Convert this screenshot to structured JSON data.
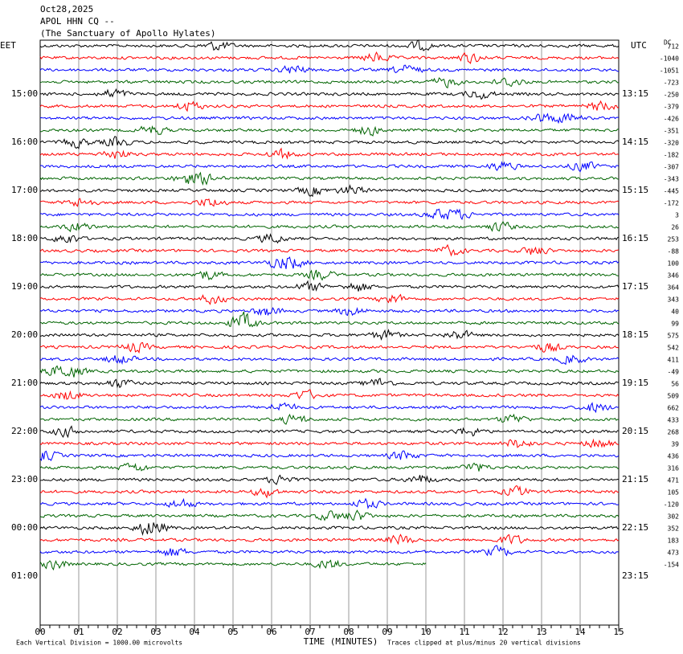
{
  "header": {
    "date": "Oct28,2025",
    "station": "APOL HHN CQ --",
    "site": "(The Sanctuary of Apollo Hylates)"
  },
  "left_axis": {
    "title": "EET",
    "labels": [
      "15:00",
      "16:00",
      "17:00",
      "18:00",
      "19:00",
      "20:00",
      "21:00",
      "22:00",
      "23:00",
      "00:00",
      "01:00"
    ]
  },
  "right_axis": {
    "title": "UTC",
    "labels": [
      "13:15",
      "14:15",
      "15:15",
      "16:15",
      "17:15",
      "18:15",
      "19:15",
      "20:15",
      "21:15",
      "22:15",
      "23:15"
    ]
  },
  "dc": {
    "title": "DC",
    "values": [
      "712",
      "-1040",
      "-1051",
      "-723",
      "-250",
      "-379",
      "-426",
      "-351",
      "-320",
      "-182",
      "-307",
      "-343",
      "-445",
      "-172",
      "3",
      "26",
      "253",
      "-88",
      "100",
      "346",
      "364",
      "343",
      "40",
      "99",
      "575",
      "542",
      "411",
      "-49",
      "56",
      "509",
      "662",
      "433",
      "268",
      "39",
      "436",
      "316",
      "471",
      "105",
      "-120",
      "302",
      "352",
      "183",
      "473",
      "-154"
    ]
  },
  "x_axis": {
    "title": "TIME (MINUTES)",
    "labels": [
      "00",
      "01",
      "02",
      "03",
      "04",
      "05",
      "06",
      "07",
      "08",
      "09",
      "10",
      "11",
      "12",
      "13",
      "14",
      "15"
    ]
  },
  "footer": {
    "scale": "Each Vertical Division = 1000.00 microvolts",
    "clip": "Traces clipped at plus/minus 20 vertical divisions"
  },
  "trace_colors": [
    "#000000",
    "#ff0000",
    "#0000ff",
    "#006400"
  ]
}
